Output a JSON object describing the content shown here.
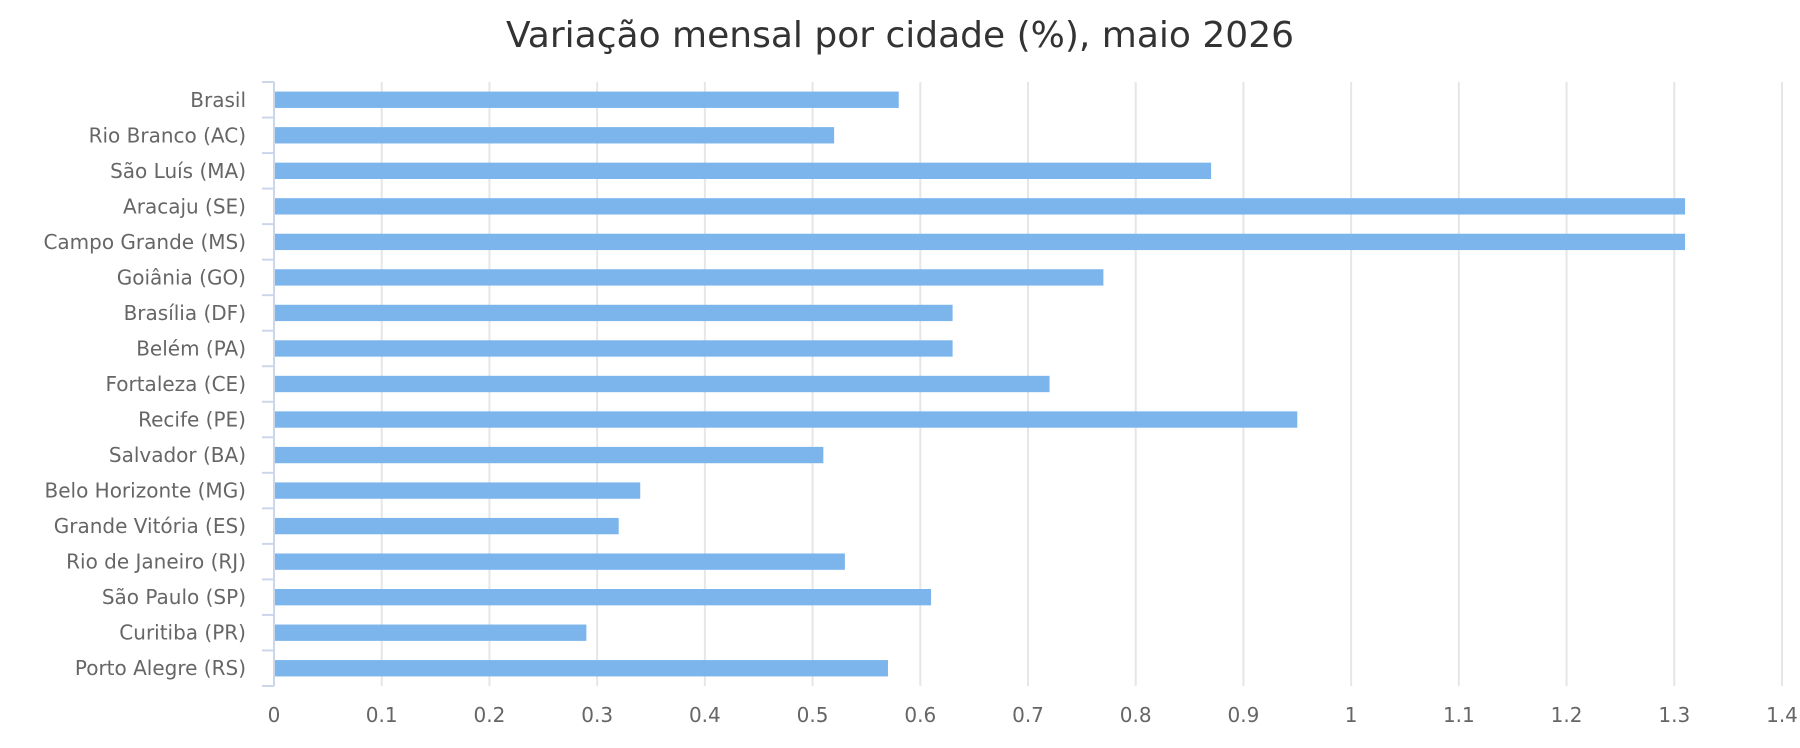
{
  "chart_data": {
    "type": "bar",
    "orientation": "horizontal",
    "title": "Variação mensal por cidade (%), maio 2026",
    "categories": [
      "Brasil",
      "Rio Branco (AC)",
      "São Luís (MA)",
      "Aracaju (SE)",
      "Campo Grande (MS)",
      "Goiânia (GO)",
      "Brasília (DF)",
      "Belém (PA)",
      "Fortaleza (CE)",
      "Recife (PE)",
      "Salvador (BA)",
      "Belo Horizonte (MG)",
      "Grande Vitória (ES)",
      "Rio de Janeiro (RJ)",
      "São Paulo (SP)",
      "Curitiba (PR)",
      "Porto Alegre (RS)"
    ],
    "values": [
      0.58,
      0.52,
      0.87,
      1.31,
      1.31,
      0.77,
      0.63,
      0.63,
      0.72,
      0.95,
      0.51,
      0.34,
      0.32,
      0.53,
      0.61,
      0.29,
      0.57
    ],
    "xlim": [
      0,
      1.4
    ],
    "xticks": [
      "0",
      "0.1",
      "0.2",
      "0.3",
      "0.4",
      "0.5",
      "0.6",
      "0.7",
      "0.8",
      "0.9",
      "1",
      "1.1",
      "1.2",
      "1.3",
      "1.4"
    ],
    "xlabel": "",
    "ylabel": "",
    "grid": "vertical",
    "legend": "none",
    "bar_color": "#7cb5ec"
  }
}
